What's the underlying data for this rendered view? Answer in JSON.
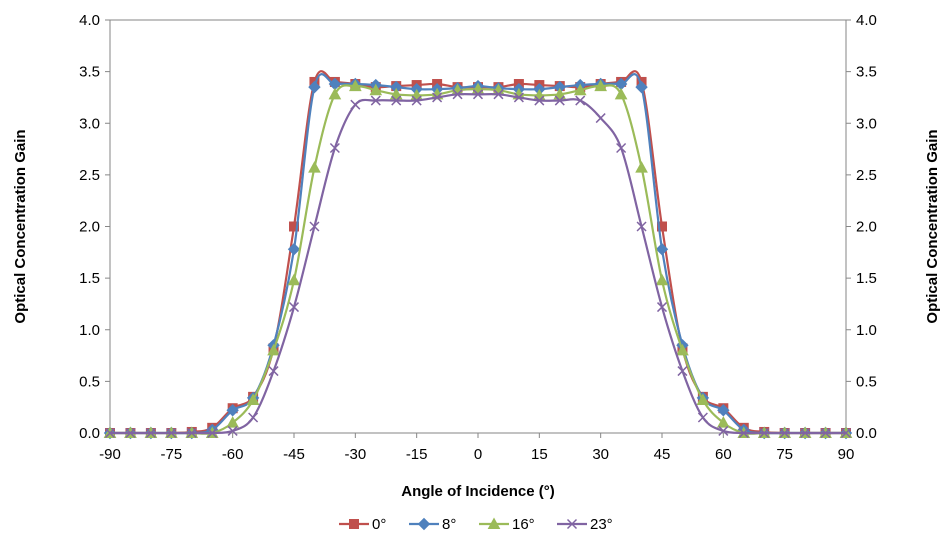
{
  "chart_data": {
    "type": "line",
    "xlabel": "Angle of Incidence (°)",
    "ylabel_left": "Optical Concentration Gain",
    "ylabel_right": "Optical Concentration Gain",
    "xlim": [
      -90,
      90
    ],
    "ylim": [
      0,
      4.0
    ],
    "xticks": [
      "-90",
      "-75",
      "-60",
      "-45",
      "-30",
      "-15",
      "0",
      "15",
      "30",
      "45",
      "60",
      "75",
      "90"
    ],
    "yticks": [
      "0.0",
      "0.5",
      "1.0",
      "1.5",
      "2.0",
      "2.5",
      "3.0",
      "3.5",
      "4.0"
    ],
    "grid": false,
    "legend_position": "bottom",
    "x": [
      -90,
      -85,
      -80,
      -75,
      -70,
      -65,
      -60,
      -55,
      -50,
      -45,
      -40,
      -35,
      -30,
      -25,
      -20,
      -15,
      -10,
      -5,
      0,
      5,
      10,
      15,
      20,
      25,
      30,
      35,
      40,
      45,
      50,
      55,
      60,
      65,
      70,
      75,
      80,
      85,
      90
    ],
    "series": [
      {
        "name": "0°",
        "color": "#c0504d",
        "marker": "square",
        "values": [
          0,
          0,
          0,
          0,
          0.01,
          0.05,
          0.24,
          0.35,
          0.82,
          2.0,
          3.4,
          3.4,
          3.38,
          3.35,
          3.36,
          3.37,
          3.38,
          3.35,
          3.35,
          3.35,
          3.38,
          3.37,
          3.36,
          3.35,
          3.38,
          3.4,
          3.4,
          2.0,
          0.82,
          0.35,
          0.24,
          0.05,
          0.01,
          0,
          0,
          0,
          0
        ]
      },
      {
        "name": "8°",
        "color": "#4f81bd",
        "marker": "diamond",
        "values": [
          0,
          0,
          0,
          0,
          0,
          0.03,
          0.22,
          0.34,
          0.85,
          1.78,
          3.35,
          3.38,
          3.38,
          3.37,
          3.35,
          3.33,
          3.33,
          3.34,
          3.36,
          3.34,
          3.33,
          3.33,
          3.35,
          3.37,
          3.38,
          3.38,
          3.35,
          1.78,
          0.85,
          0.34,
          0.22,
          0.03,
          0,
          0,
          0,
          0,
          0
        ]
      },
      {
        "name": "16°",
        "color": "#9bbb59",
        "marker": "triangle",
        "values": [
          0,
          0,
          0,
          0,
          0,
          0,
          0.1,
          0.32,
          0.8,
          1.48,
          2.57,
          3.28,
          3.36,
          3.32,
          3.28,
          3.27,
          3.28,
          3.32,
          3.33,
          3.32,
          3.28,
          3.27,
          3.28,
          3.32,
          3.36,
          3.28,
          2.57,
          1.48,
          0.8,
          0.32,
          0.1,
          0,
          0,
          0,
          0,
          0,
          0
        ]
      },
      {
        "name": "23°",
        "color": "#8064a2",
        "marker": "x",
        "values": [
          0,
          0,
          0,
          0,
          0,
          0,
          0.02,
          0.15,
          0.6,
          1.22,
          2.0,
          2.76,
          3.18,
          3.22,
          3.22,
          3.22,
          3.25,
          3.28,
          3.28,
          3.28,
          3.25,
          3.22,
          3.22,
          3.22,
          3.05,
          2.76,
          2.0,
          1.22,
          0.6,
          0.15,
          0.02,
          0,
          0,
          0,
          0,
          0,
          0
        ]
      }
    ]
  }
}
